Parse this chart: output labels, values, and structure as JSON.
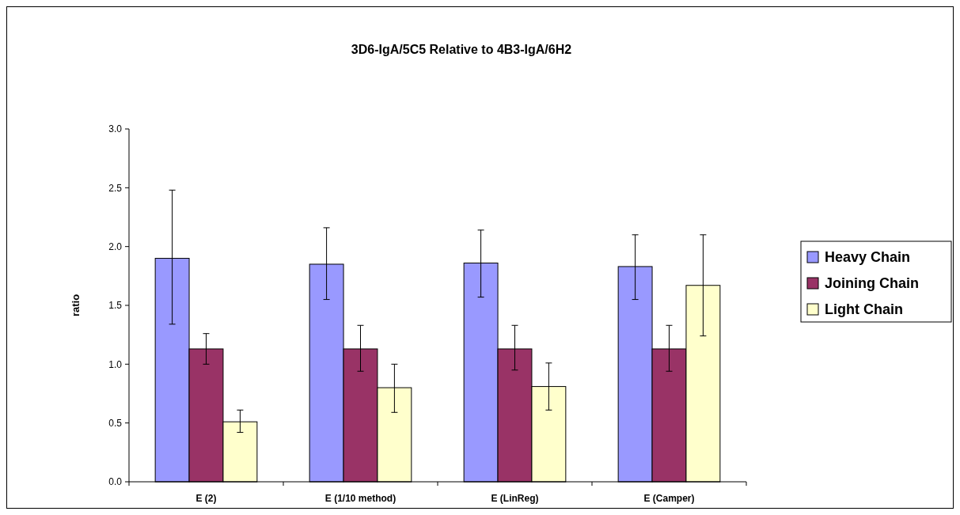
{
  "chart_data": {
    "type": "bar",
    "title": "3D6-IgA/5C5 Relative to 4B3-IgA/6H2",
    "ylabel": "ratio",
    "categories": [
      "E (2)",
      "E (1/10 method)",
      "E (LinReg)",
      "E (Camper)"
    ],
    "series": [
      {
        "name": "Heavy Chain",
        "color": "#9999ff",
        "values": [
          1.9,
          1.85,
          1.86,
          1.83
        ],
        "errors": [
          [
            1.34,
            2.48
          ],
          [
            1.55,
            2.16
          ],
          [
            1.57,
            2.14
          ],
          [
            1.55,
            2.1
          ]
        ]
      },
      {
        "name": "Joining Chain",
        "color": "#993366",
        "values": [
          1.13,
          1.13,
          1.13,
          1.13
        ],
        "errors": [
          [
            1.0,
            1.26
          ],
          [
            0.94,
            1.33
          ],
          [
            0.95,
            1.33
          ],
          [
            0.94,
            1.33
          ]
        ]
      },
      {
        "name": "Light Chain",
        "color": "#ffffcc",
        "values": [
          0.51,
          0.8,
          0.81,
          1.67
        ],
        "errors": [
          [
            0.42,
            0.61
          ],
          [
            0.59,
            1.0
          ],
          [
            0.61,
            1.01
          ],
          [
            1.24,
            2.1
          ]
        ]
      }
    ],
    "ylim": [
      0,
      3
    ],
    "yticks": [
      {
        "value": 0,
        "label": "0.0"
      },
      {
        "value": 0.5,
        "label": "0.5"
      },
      {
        "value": 1,
        "label": "1.0"
      },
      {
        "value": 1.5,
        "label": "1.5"
      },
      {
        "value": 2,
        "label": "2.0"
      },
      {
        "value": 2.5,
        "label": "2.5"
      },
      {
        "value": 3,
        "label": "3.0"
      }
    ],
    "legend": "right",
    "grid": false
  }
}
